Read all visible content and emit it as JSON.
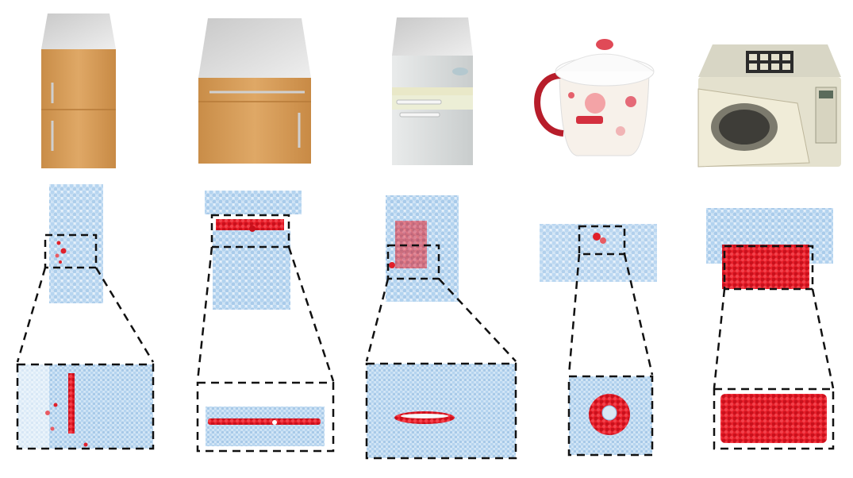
{
  "figure": {
    "columns": [
      {
        "object": "cabinet-tall",
        "handle": "vertical-left-door"
      },
      {
        "object": "cabinet-drawer",
        "handle": "horizontal-drawer"
      },
      {
        "object": "refrigerator",
        "handle": "horizontal-door"
      },
      {
        "object": "mug-with-lid",
        "handle": "lid-knob"
      },
      {
        "object": "microwave",
        "handle": "door"
      }
    ],
    "colors": {
      "points_blue": "#b9d8f2",
      "points_blue_dark": "#8fbbe3",
      "highlight_red": "#e0202a",
      "wood": "#d9a05c",
      "cabinet_top": "#d4d4d4",
      "dashed": "#111111"
    }
  }
}
